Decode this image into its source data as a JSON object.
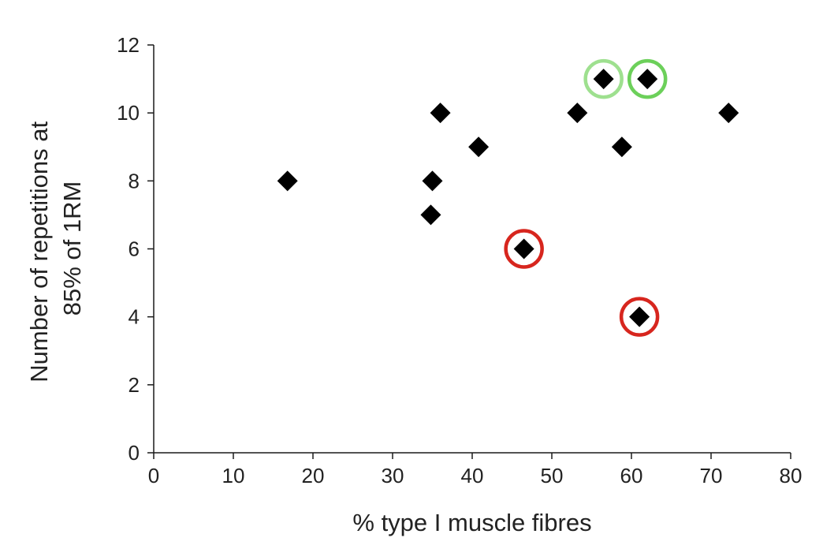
{
  "chart_data": {
    "type": "scatter",
    "xlabel": "% type I muscle fibres",
    "ylabel_lines": [
      "Number of repetitions at",
      "85% of 1RM"
    ],
    "xlim": [
      0,
      80
    ],
    "ylim": [
      0,
      12
    ],
    "xticks": [
      "0",
      "10",
      "20",
      "30",
      "40",
      "50",
      "60",
      "70",
      "80"
    ],
    "yticks": [
      "0",
      "2",
      "4",
      "6",
      "8",
      "10",
      "12"
    ],
    "grid": false,
    "marker": "diamond",
    "marker_color": "#000000",
    "points": [
      {
        "x": 16.8,
        "y": 8
      },
      {
        "x": 34.8,
        "y": 7
      },
      {
        "x": 35.0,
        "y": 8
      },
      {
        "x": 36.0,
        "y": 10
      },
      {
        "x": 40.8,
        "y": 9
      },
      {
        "x": 46.5,
        "y": 6,
        "highlight": "red"
      },
      {
        "x": 53.2,
        "y": 10
      },
      {
        "x": 56.5,
        "y": 11,
        "highlight": "lightgreen"
      },
      {
        "x": 58.8,
        "y": 9
      },
      {
        "x": 61.0,
        "y": 4,
        "highlight": "red"
      },
      {
        "x": 62.0,
        "y": 11,
        "highlight": "green"
      },
      {
        "x": 72.2,
        "y": 10
      }
    ],
    "highlight_colors": {
      "red": "#d7261e",
      "lightgreen": "#9ee08f",
      "green": "#6cd05a"
    }
  }
}
